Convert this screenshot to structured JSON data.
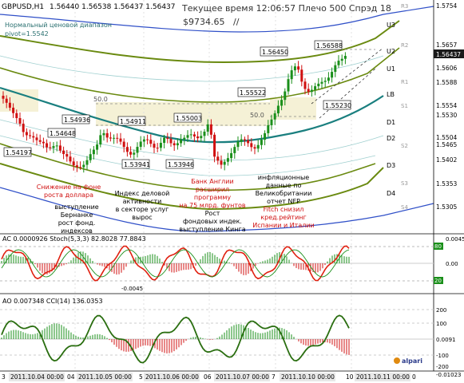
{
  "header": {
    "symbol": "GBPUSD,H1",
    "quotes": "1.56440 1.56538 1.56437 1.56437",
    "server_info": "Текущее время 12:06:57 Плечо 500 Спрэд 18",
    "account_value": "$9734.65",
    "account_marker": "//",
    "band_label": "Нормальный ценовой диапазон",
    "pivot_label": "pivot=1.5542"
  },
  "price_axis": {
    "labels": [
      "1.5754",
      "1.5657",
      "1.5606",
      "1.5588",
      "1.5554",
      "1.5530",
      "1.5504",
      "1.5465",
      "1.5402",
      "1.5353",
      "1.5305"
    ],
    "current": "1.56437",
    "level_names": [
      "R3",
      "R2",
      "R1",
      "S1",
      "S2",
      "S3",
      "S4"
    ],
    "pivot_names": [
      "U3",
      "U2",
      "U1",
      "LB",
      "D1",
      "D2",
      "D3",
      "D4"
    ]
  },
  "price_marks": {
    "labels": [
      "1.54197",
      "1.54648",
      "1.54936",
      "1.54911",
      "1.55003",
      "1.53941",
      "1.53946",
      "1.55522",
      "1.56450",
      "1.56588",
      "1.55230"
    ],
    "fib_labels": [
      "50.0",
      "50.0"
    ]
  },
  "annotations": [
    "Снижение на фоне роста доллара",
    "выступление Бернанке рост фонд. индексов",
    "Индекс деловой активности в секторе услуг вырос",
    "Банк Англии расширил программу на 75 млрд. фунтов Рост фондовых индек. выступление Кинга",
    "инфляционные данные по Великобритании отчет NFP Fitch снизил кред.рейтинг Испании и Италии"
  ],
  "ac_panel": {
    "title": "AC 0.0000926  Stoch(5,3,3) 82.8028 77.8843",
    "axis": [
      "80",
      "20",
      "0.00",
      "0.0045"
    ],
    "bottom": "-0.0045"
  },
  "ao_panel": {
    "title": "AO 0.007348  CCI(14) 136.0353",
    "axis": [
      "200",
      "100",
      "0.0091",
      "-100",
      "-200"
    ],
    "bottom": "-0.01023",
    "logo": "alpari"
  },
  "time_axis": [
    "3",
    "2011.10.04 00:00",
    "04",
    "2011.10.05 00:00",
    "5",
    "2011.10.06 00:00",
    "06",
    "2011.10.07 00:00",
    "7",
    "2011.10.10 00:00",
    "10",
    "2011.10.11 00:00",
    "0"
  ],
  "colors": {
    "bull": "#1a8f1a",
    "bear": "#d01010",
    "ma_teal": "#1a7f7f",
    "band_olive": "#6a8a10",
    "band_blue": "#3050c8",
    "stoch_red": "#e02010",
    "cci_green": "#2a6e10"
  }
}
